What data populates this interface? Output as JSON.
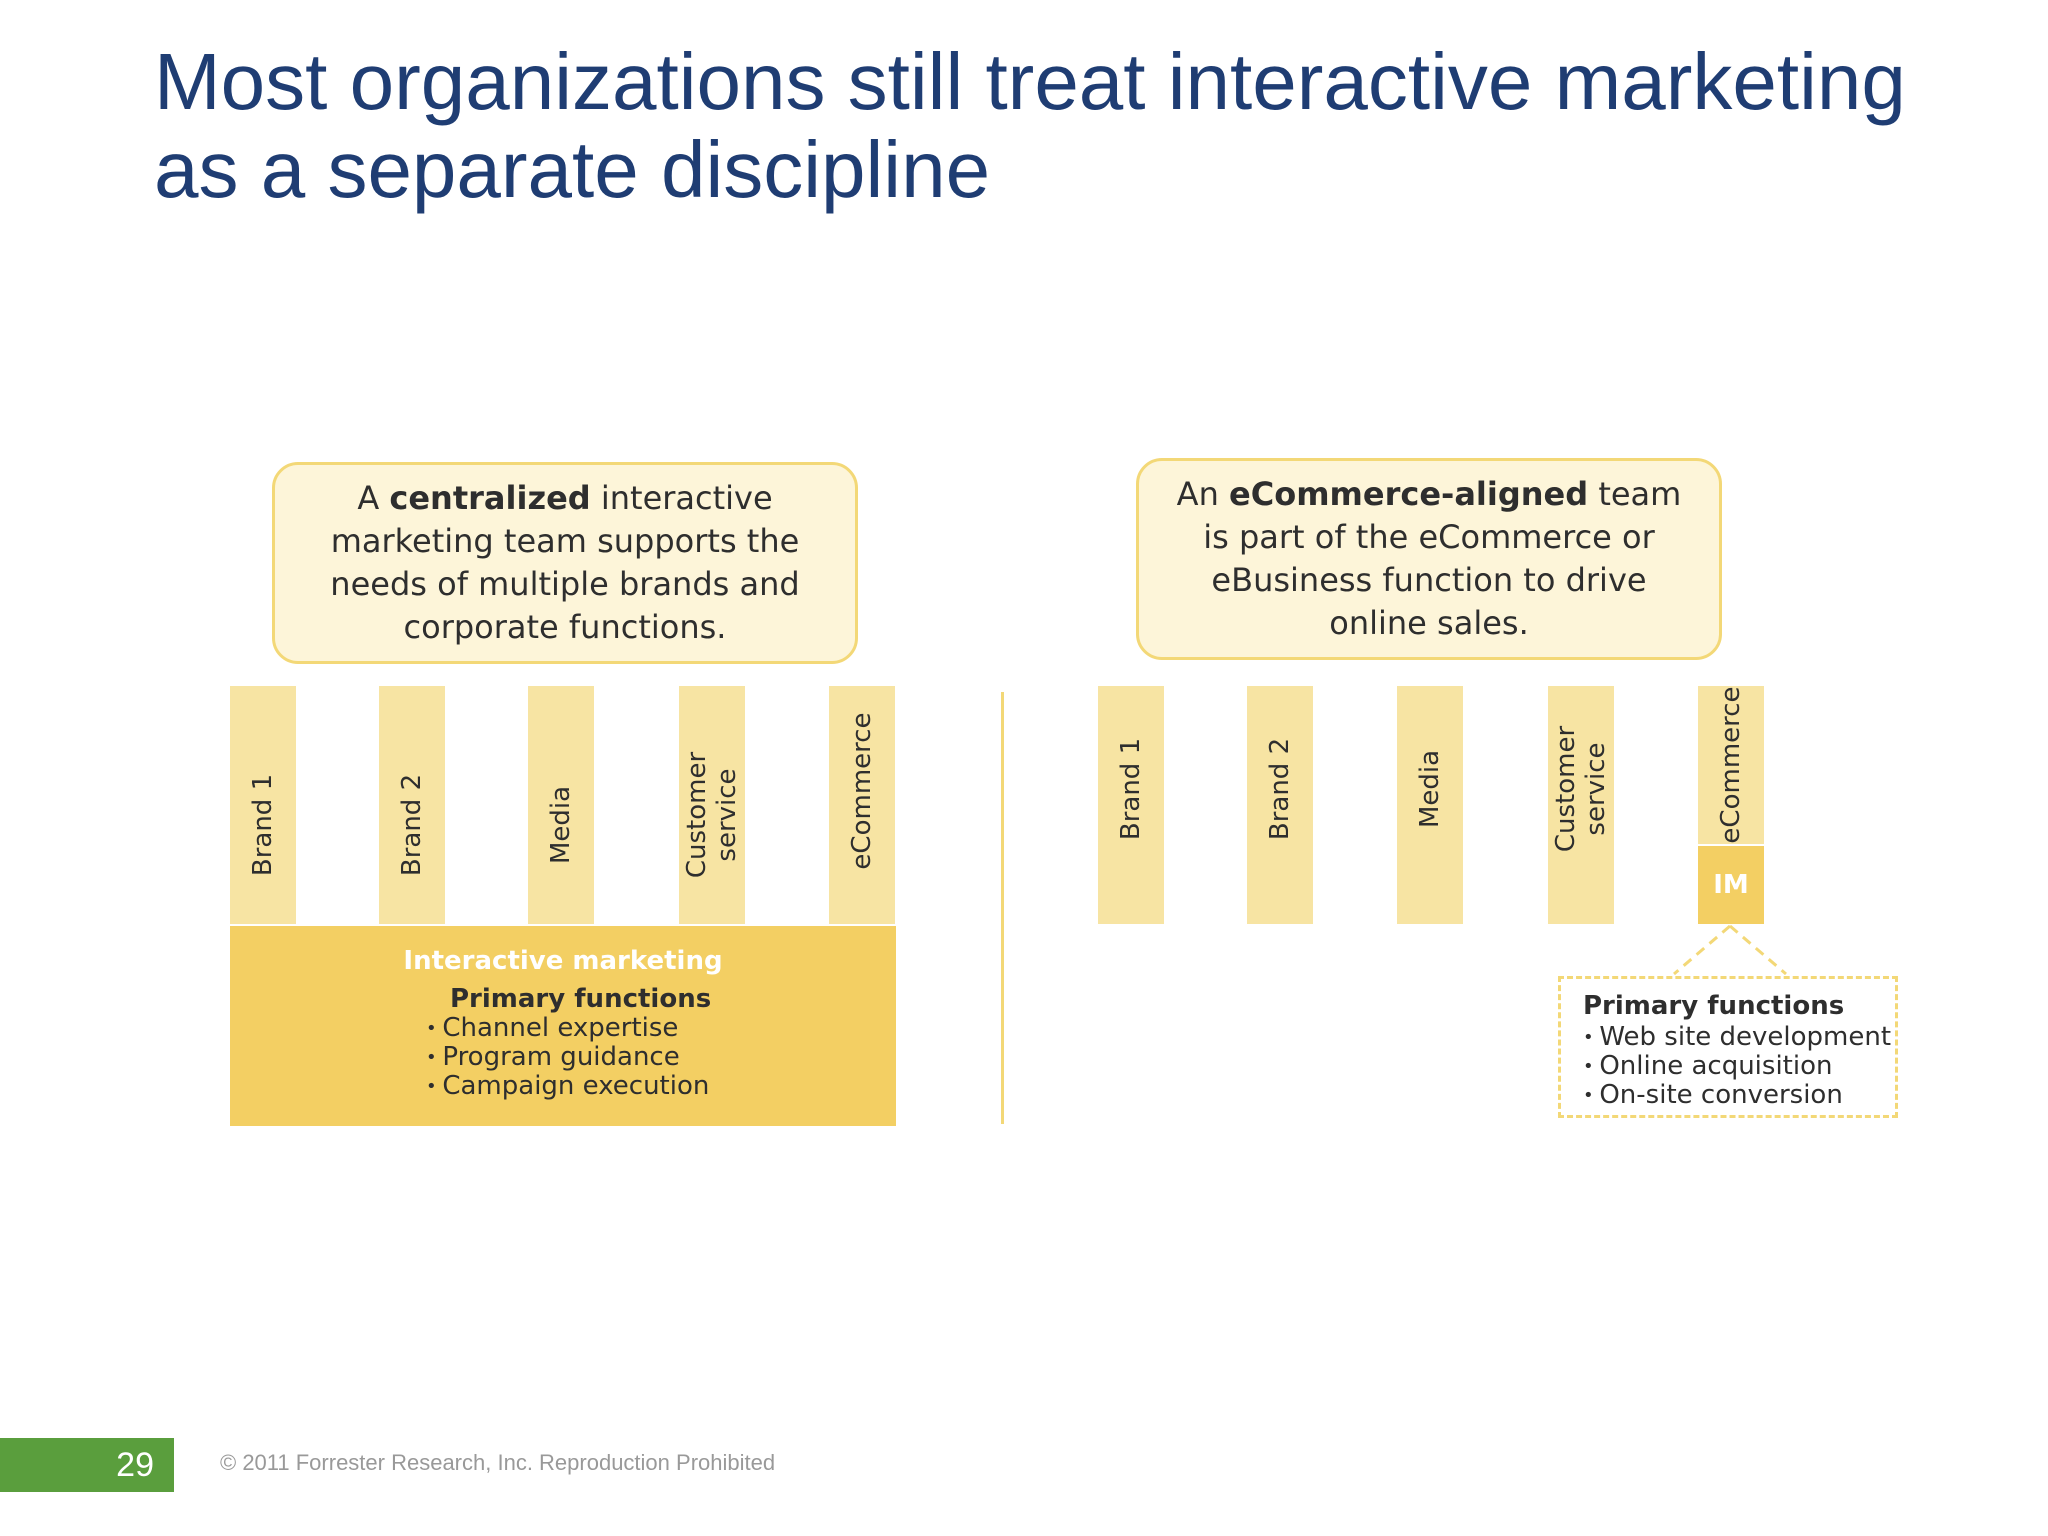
{
  "slide": {
    "title_line1": "Most organizations still treat interactive marketing",
    "title_line2": "as a separate discipline",
    "page_number": "29",
    "footer": "© 2011 Forrester Research, Inc. Reproduction Prohibited"
  },
  "colors": {
    "title": "#1f3d73",
    "callout_fill": "#fdf5d9",
    "callout_border": "#f3d877",
    "bar_fill": "#f7e4a3",
    "im_fill": "#f3cf63",
    "page_badge": "#5a9e3d"
  },
  "left": {
    "callout": {
      "pre": "A ",
      "bold": "centralized",
      "post": " interactive marketing team supports the needs of multiple brands and corporate functions."
    },
    "bars": [
      "Brand 1",
      "Brand 2",
      "Media",
      "Customer service",
      "eCommerce"
    ],
    "im": {
      "title": "Interactive marketing",
      "functions_title": "Primary functions",
      "functions": [
        "Channel expertise",
        "Program guidance",
        "Campaign execution"
      ]
    }
  },
  "right": {
    "callout": {
      "pre": "An ",
      "bold": "eCommerce-aligned",
      "post": " team is part of the eCommerce or eBusiness function to drive online sales."
    },
    "bars": [
      "Brand 1",
      "Brand 2",
      "Media",
      "Customer service",
      "eCommerce"
    ],
    "im_label": "IM",
    "functions_title": "Primary functions",
    "functions": [
      "Web site development",
      "Online acquisition",
      "On-site conversion"
    ]
  }
}
